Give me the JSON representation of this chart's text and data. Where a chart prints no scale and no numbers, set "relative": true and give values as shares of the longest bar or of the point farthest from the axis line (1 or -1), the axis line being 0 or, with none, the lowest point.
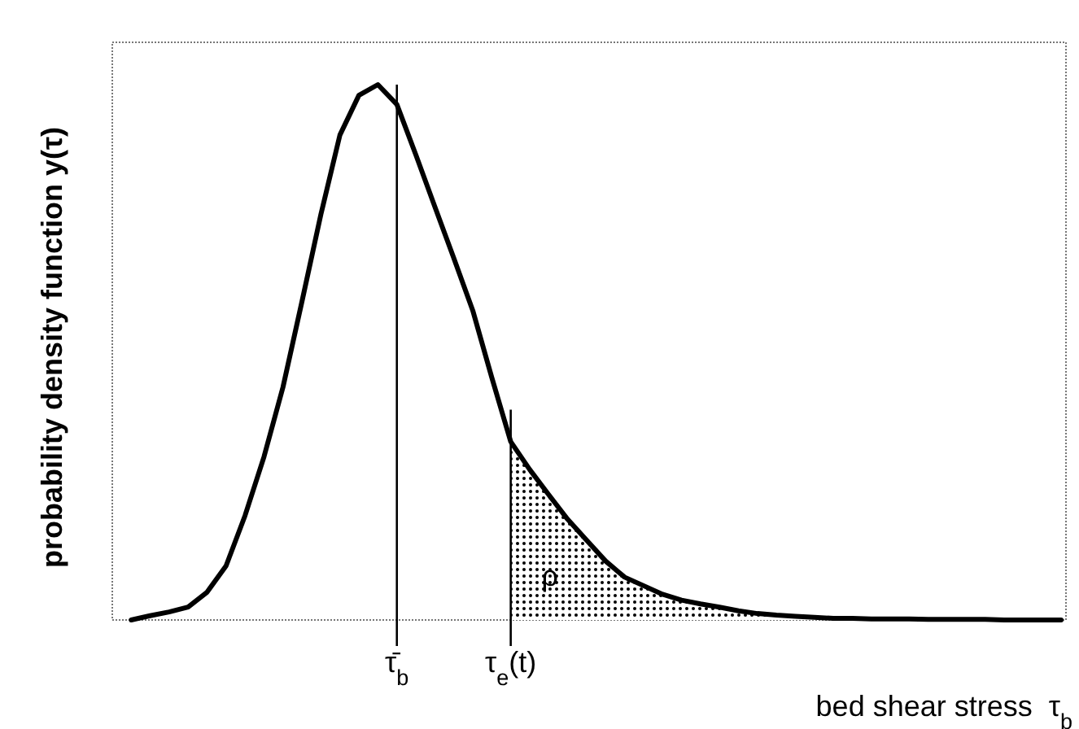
{
  "chart_data": {
    "type": "line",
    "relative": true,
    "ylabel": "probability density function y(τ)",
    "xlabel": "bed shear stress  τ$_{b}$",
    "categories": [
      null,
      null,
      null,
      null,
      null,
      null,
      null,
      null,
      null,
      null,
      null,
      null,
      null,
      null,
      "τ̄$_{b}$",
      null,
      null,
      null,
      null,
      null,
      "τ$_{e}$(t)",
      null,
      null,
      null,
      null,
      null,
      null,
      null,
      null,
      null,
      null,
      null,
      null,
      null,
      null,
      null,
      null,
      null,
      null,
      null,
      null,
      null,
      null,
      null,
      null,
      null,
      null,
      null,
      null,
      null
    ],
    "tick_labels": "x",
    "line_style": "solid",
    "series": [
      {
        "type": "line",
        "color": "#000000",
        "values": [
          0,
          0.008,
          0.015,
          0.024,
          0.052,
          0.101,
          0.195,
          0.305,
          0.435,
          0.595,
          0.758,
          0.906,
          0.98,
          1,
          0.963,
          0.869,
          0.772,
          0.676,
          0.578,
          0.453,
          0.333,
          0.281,
          0.234,
          0.188,
          0.149,
          0.11,
          0.08,
          0.064,
          0.048,
          0.037,
          0.03,
          0.024,
          0.017,
          0.012,
          0.009,
          0.007,
          0.005,
          0.003,
          0.003,
          0.002,
          0.002,
          0.002,
          0.001,
          0.001,
          0.001,
          0.001,
          0,
          0,
          0,
          0
        ]
      },
      {
        "type": "area",
        "color": "#000000",
        "values": [
          null,
          null,
          null,
          null,
          null,
          null,
          null,
          null,
          null,
          null,
          null,
          null,
          null,
          null,
          null,
          null,
          null,
          null,
          null,
          null,
          0.333,
          0.281,
          0.234,
          0.188,
          0.149,
          0.11,
          0.08,
          0.064,
          0.048,
          0.037,
          0.03,
          0.024,
          0.017,
          0.012,
          0.009,
          0.007,
          0.005,
          0.003,
          0.003,
          0.002,
          0.002,
          0.002,
          0.001,
          0.001,
          0.001,
          0.001,
          0,
          0,
          0,
          0
        ]
      }
    ],
    "ref_lines": [
      {
        "axis": "x",
        "value": "τ̄$_{b}$",
        "color": "#000000"
      },
      {
        "axis": "x",
        "value": "τ$_{e}$(t)",
        "color": "#000000"
      }
    ],
    "annotations": [
      {
        "text": "ρ",
        "x": "τ$_{e}$(t)",
        "y": 0.085
      }
    ]
  }
}
